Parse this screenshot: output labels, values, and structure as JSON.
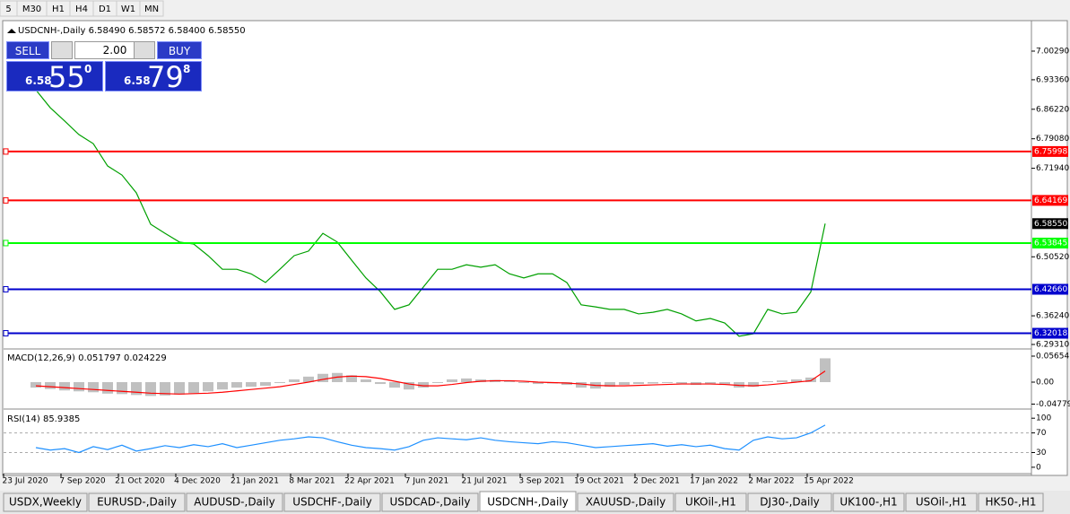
{
  "toolbar": {
    "timeframes": [
      "5",
      "M30",
      "H1",
      "H4",
      "D1",
      "W1",
      "MN"
    ]
  },
  "trade_panel": {
    "sell_label": "SELL",
    "lots": "2.00",
    "buy_label": "BUY",
    "sell_price": {
      "prefix": "6.58",
      "big": "55",
      "small": "0"
    },
    "buy_price": {
      "prefix": "6.58",
      "big": "79",
      "small": "8"
    }
  },
  "chart_data": [
    {
      "type": "line",
      "title": "USDCNH-,Daily  6.58490 6.58572 6.58400 6.58550",
      "color": "#00a000",
      "values": [
        6.909,
        6.866,
        6.834,
        6.801,
        6.779,
        6.725,
        6.703,
        6.66,
        6.584,
        6.562,
        6.541,
        6.536,
        6.508,
        6.475,
        6.475,
        6.464,
        6.443,
        6.475,
        6.508,
        6.519,
        6.562,
        6.541,
        6.497,
        6.454,
        6.421,
        6.378,
        6.389,
        6.432,
        6.475,
        6.475,
        6.486,
        6.48,
        6.486,
        6.464,
        6.454,
        6.464,
        6.464,
        6.443,
        6.389,
        6.384,
        6.378,
        6.378,
        6.367,
        6.371,
        6.378,
        6.367,
        6.35,
        6.356,
        6.345,
        6.313,
        6.319,
        6.378,
        6.367,
        6.371,
        6.42,
        6.5855
      ],
      "ylim": [
        6.2844,
        7.0745
      ],
      "yticks": [
        {
          "value": 7.0029,
          "label": "7.00290"
        },
        {
          "value": 6.9336,
          "label": "6.93360"
        },
        {
          "value": 6.8622,
          "label": "6.86220"
        },
        {
          "value": 6.7908,
          "label": "6.79080"
        },
        {
          "value": 6.7194,
          "label": "6.71940"
        },
        {
          "value": 6.5052,
          "label": "6.50520"
        },
        {
          "value": 6.3624,
          "label": "6.36240"
        },
        {
          "value": 6.2931,
          "label": "6.29310"
        }
      ],
      "levels": [
        {
          "value": 6.75998,
          "label": "6.75998",
          "color": "#ff0000"
        },
        {
          "value": 6.64169,
          "label": "6.64169",
          "color": "#ff0000"
        },
        {
          "value": 6.53845,
          "label": "6.53845",
          "color": "#00ff00"
        },
        {
          "value": 6.4266,
          "label": "6.42660",
          "color": "#0000cd"
        },
        {
          "value": 6.32018,
          "label": "6.32018",
          "color": "#0000cd"
        }
      ],
      "last_price": {
        "value": 6.5855,
        "label": "6.58550"
      },
      "date_labels": [
        "23 Jul 2020",
        "7 Sep 2020",
        "21 Oct 2020",
        "4 Dec 2020",
        "21 Jan 2021",
        "8 Mar 2021",
        "22 Apr 2021",
        "7 Jun 2021",
        "21 Jul 2021",
        "3 Sep 2021",
        "19 Oct 2021",
        "2 Dec 2021",
        "17 Jan 2022",
        "2 Mar 2022",
        "15 Apr 2022"
      ]
    },
    {
      "type": "bar",
      "title": "MACD(12,26,9) 0.051797 0.024229",
      "color": "#c0c0c0",
      "values": [
        -0.012,
        -0.015,
        -0.018,
        -0.02,
        -0.022,
        -0.025,
        -0.026,
        -0.028,
        -0.03,
        -0.029,
        -0.027,
        -0.024,
        -0.02,
        -0.016,
        -0.012,
        -0.01,
        -0.008,
        -0.002,
        0.006,
        0.012,
        0.018,
        0.02,
        0.015,
        0.006,
        -0.004,
        -0.012,
        -0.016,
        -0.012,
        -0.002,
        0.006,
        0.008,
        0.006,
        0.005,
        0.002,
        -0.002,
        -0.004,
        -0.003,
        -0.006,
        -0.012,
        -0.014,
        -0.01,
        -0.006,
        -0.004,
        -0.003,
        -0.002,
        -0.003,
        -0.006,
        -0.004,
        -0.006,
        -0.012,
        -0.01,
        0.002,
        0.004,
        0.006,
        0.01,
        0.051797
      ],
      "signal": {
        "color": "#ff0000",
        "values": [
          -0.008,
          -0.01,
          -0.012,
          -0.014,
          -0.016,
          -0.018,
          -0.02,
          -0.022,
          -0.024,
          -0.025,
          -0.026,
          -0.025,
          -0.024,
          -0.022,
          -0.019,
          -0.016,
          -0.013,
          -0.01,
          -0.005,
          0.0,
          0.006,
          0.011,
          0.013,
          0.012,
          0.008,
          0.002,
          -0.004,
          -0.008,
          -0.008,
          -0.005,
          -0.001,
          0.002,
          0.003,
          0.003,
          0.002,
          0.0,
          -0.001,
          -0.002,
          -0.004,
          -0.007,
          -0.008,
          -0.008,
          -0.007,
          -0.006,
          -0.005,
          -0.004,
          -0.004,
          -0.004,
          -0.005,
          -0.007,
          -0.008,
          -0.006,
          -0.003,
          0.0,
          0.003,
          0.024229
        ]
      },
      "ylim": [
        -0.0546,
        0.0702
      ],
      "yticks": [
        {
          "value": 0.05654,
          "label": "0.05654"
        },
        {
          "value": 0,
          "label": "0.00"
        },
        {
          "value": -0.047793,
          "label": "-0.047793"
        }
      ]
    },
    {
      "type": "line",
      "title": "RSI(14) 85.9385",
      "color": "#1e90ff",
      "values": [
        40,
        35,
        38,
        30,
        42,
        36,
        45,
        33,
        38,
        44,
        40,
        46,
        42,
        48,
        40,
        45,
        50,
        55,
        58,
        62,
        60,
        52,
        45,
        40,
        38,
        35,
        42,
        55,
        60,
        58,
        56,
        60,
        55,
        52,
        50,
        48,
        52,
        50,
        45,
        40,
        42,
        44,
        46,
        48,
        43,
        46,
        42,
        45,
        38,
        35,
        55,
        62,
        58,
        60,
        70,
        85.9385
      ],
      "ylim": [
        -13,
        115
      ],
      "yticks": [
        100,
        70,
        30,
        0
      ],
      "levels": [
        70,
        30
      ]
    }
  ],
  "tabs": {
    "items": [
      "USDX,Weekly",
      "EURUSD-,Daily",
      "AUDUSD-,Daily",
      "USDCHF-,Daily",
      "USDCAD-,Daily",
      "USDCNH-,Daily",
      "XAUUSD-,Daily",
      "UKOil-,H1",
      "DJ30-,Daily",
      "UK100-,H1",
      "USOil-,H1",
      "HK50-,H1"
    ],
    "active": 5
  }
}
